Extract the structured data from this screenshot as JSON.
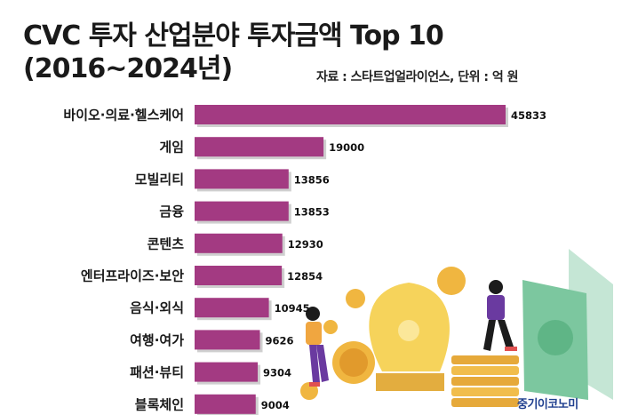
{
  "title_line1": "CVC 투자 산업분야 투자금액 Top 10",
  "title_line2": "(2016~2024년)",
  "source_note": "자료 : 스타트업얼라이언스, 단위 : 억 원",
  "brand": "중기이코노미",
  "colors": {
    "bar": "#a33a82"
  },
  "chart_data": {
    "type": "bar",
    "orientation": "horizontal",
    "title": "CVC 투자 산업분야 투자금액 Top 10",
    "subtitle": "(2016~2024년)",
    "xlabel": "",
    "ylabel": "",
    "categories": [
      "바이오·의료·헬스케어",
      "게임",
      "모빌리티",
      "금융",
      "콘텐츠",
      "엔터프라이즈·보안",
      "음식·외식",
      "여행·여가",
      "패션·뷰티",
      "블록체인"
    ],
    "values": [
      45833,
      19000,
      13856,
      13853,
      12930,
      12854,
      10945,
      9626,
      9304,
      9004
    ],
    "xlim": [
      0,
      45833
    ],
    "grid": false,
    "legend": "none"
  }
}
